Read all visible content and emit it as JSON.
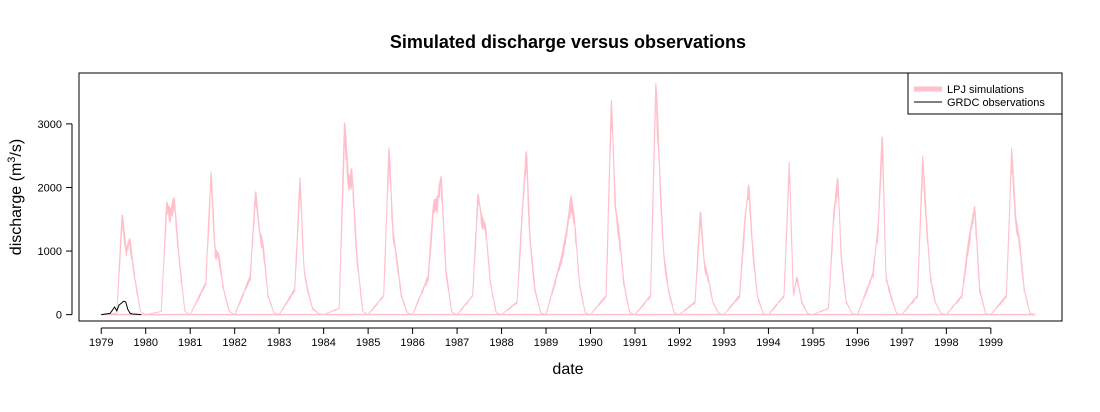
{
  "chart_data": {
    "type": "line",
    "title": "Simulated discharge versus observations",
    "xlabel": "date",
    "ylabel": "discharge (m³/s)",
    "ylabel_parts": [
      "discharge (m",
      "3",
      "/s)"
    ],
    "xlim": [
      1978.5,
      2000.6
    ],
    "ylim": [
      -100,
      3800
    ],
    "x_ticks": [
      "1979",
      "1980",
      "1981",
      "1982",
      "1983",
      "1984",
      "1985",
      "1986",
      "1987",
      "1988",
      "1989",
      "1990",
      "1991",
      "1992",
      "1993",
      "1994",
      "1995",
      "1996",
      "1997",
      "1998",
      "1999"
    ],
    "y_ticks": [
      0,
      1000,
      2000,
      3000
    ],
    "grid": false,
    "legend_position": "top-right",
    "series": [
      {
        "name": "LPJ simulations",
        "color": "#ffc0cb",
        "style": "band",
        "annual_peaks": [
          {
            "year": 1979,
            "values": [
              0,
              20,
              1600,
              1000,
              1200,
              600,
              50,
              0
            ]
          },
          {
            "year": 1980,
            "values": [
              0,
              50,
              1750,
              1600,
              1850,
              900,
              50,
              0
            ]
          },
          {
            "year": 1981,
            "values": [
              0,
              500,
              2250,
              1000,
              950,
              400,
              50,
              0
            ]
          },
          {
            "year": 1982,
            "values": [
              0,
              600,
              1950,
              1300,
              1100,
              300,
              30,
              0
            ]
          },
          {
            "year": 1983,
            "values": [
              0,
              400,
              2150,
              700,
              400,
              100,
              20,
              0
            ]
          },
          {
            "year": 1984,
            "values": [
              0,
              100,
              3050,
              2100,
              2250,
              900,
              50,
              0
            ]
          },
          {
            "year": 1985,
            "values": [
              0,
              300,
              2650,
              1300,
              900,
              300,
              30,
              0
            ]
          },
          {
            "year": 1986,
            "values": [
              0,
              600,
              1750,
              1800,
              2200,
              700,
              40,
              0
            ]
          },
          {
            "year": 1987,
            "values": [
              0,
              300,
              1900,
              1500,
              1400,
              500,
              30,
              0
            ]
          },
          {
            "year": 1988,
            "values": [
              0,
              200,
              1700,
              2600,
              1200,
              400,
              30,
              0
            ]
          },
          {
            "year": 1989,
            "values": [
              0,
              900,
              1350,
              1850,
              1500,
              500,
              30,
              0
            ]
          },
          {
            "year": 1990,
            "values": [
              0,
              300,
              3400,
              1700,
              1300,
              500,
              30,
              0
            ]
          },
          {
            "year": 1991,
            "values": [
              0,
              300,
              3700,
              2200,
              1000,
              400,
              30,
              0
            ]
          },
          {
            "year": 1992,
            "values": [
              0,
              200,
              1650,
              800,
              600,
              200,
              20,
              0
            ]
          },
          {
            "year": 1993,
            "values": [
              0,
              300,
              1500,
              2050,
              1100,
              300,
              20,
              0
            ]
          },
          {
            "year": 1994,
            "values": [
              0,
              300,
              2400,
              300,
              600,
              200,
              20,
              0
            ]
          },
          {
            "year": 1995,
            "values": [
              0,
              100,
              1600,
              2150,
              900,
              200,
              20,
              0
            ]
          },
          {
            "year": 1996,
            "values": [
              0,
              650,
              1400,
              2900,
              600,
              300,
              20,
              0
            ]
          },
          {
            "year": 1997,
            "values": [
              0,
              300,
              2500,
              1400,
              600,
              200,
              20,
              0
            ]
          },
          {
            "year": 1998,
            "values": [
              0,
              300,
              1000,
              1400,
              1700,
              400,
              20,
              0
            ]
          },
          {
            "year": 1999,
            "values": [
              0,
              300,
              2600,
              1500,
              1200,
              400,
              20,
              0
            ]
          }
        ]
      },
      {
        "name": "GRDC observations",
        "color": "#000000",
        "style": "line",
        "x": [
          1979.0,
          1979.1,
          1979.2,
          1979.3,
          1979.35,
          1979.4,
          1979.45,
          1979.5,
          1979.55,
          1979.6,
          1979.65,
          1979.7,
          1979.8,
          1979.9
        ],
        "y": [
          0,
          10,
          20,
          120,
          60,
          150,
          180,
          210,
          200,
          80,
          20,
          10,
          5,
          0
        ]
      }
    ]
  }
}
